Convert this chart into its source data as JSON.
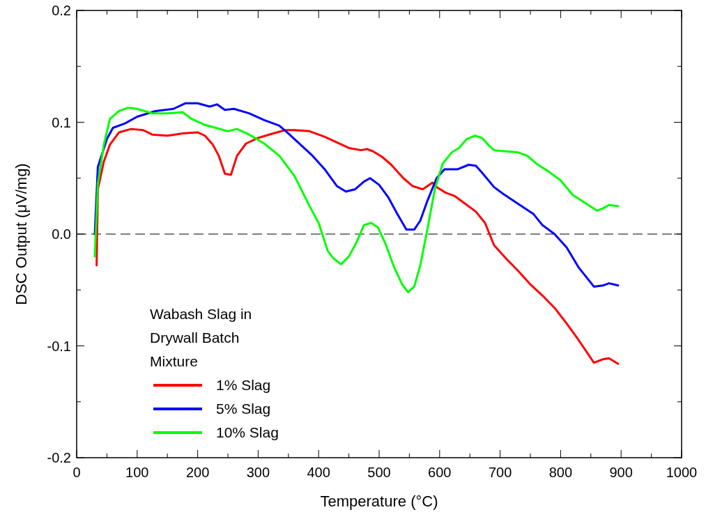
{
  "chart_data": {
    "type": "line",
    "xlabel": "Temperature (°C)",
    "ylabel": "DSC Output (μV/mg)",
    "legend_title": "Wabash Slag in Drywall Batch Mixture",
    "legend": "bottom left",
    "marker": "none",
    "line_style": "solid",
    "grid": false,
    "xlim": [
      0,
      1000
    ],
    "xticks": [
      0,
      {
        "value": 50,
        "label": null
      },
      100,
      {
        "value": 150,
        "label": null
      },
      200,
      {
        "value": 250,
        "label": null
      },
      300,
      {
        "value": 350,
        "label": null
      },
      400,
      {
        "value": 450,
        "label": null
      },
      500,
      {
        "value": 550,
        "label": null
      },
      600,
      {
        "value": 650,
        "label": null
      },
      700,
      {
        "value": 750,
        "label": null
      },
      800,
      {
        "value": 850,
        "label": null
      },
      900,
      {
        "value": 950,
        "label": null
      },
      1000
    ],
    "ylim": [
      -0.2,
      0.2
    ],
    "yticks": [
      -0.2,
      {
        "value": -0.15,
        "label": null
      },
      -0.1,
      {
        "value": -0.05,
        "label": null
      },
      {
        "value": 0,
        "label": "0.0"
      },
      {
        "value": 0.05,
        "label": null
      },
      0.1,
      {
        "value": 0.15,
        "label": null
      },
      0.2
    ],
    "ref_lines": [
      {
        "axis": "y",
        "value": 0,
        "color": "#000000",
        "line_style": "dashed"
      }
    ],
    "series": [
      {
        "name": "1% Slag",
        "color": "#ff0000",
        "x": [
          33,
          35,
          45,
          55,
          70,
          90,
          110,
          125,
          150,
          175,
          200,
          212,
          225,
          235,
          245,
          255,
          265,
          280,
          300,
          325,
          345,
          360,
          385,
          410,
          430,
          450,
          470,
          480,
          490,
          505,
          520,
          540,
          555,
          572,
          588,
          595,
          610,
          625,
          640,
          660,
          675,
          690,
          710,
          730,
          750,
          770,
          790,
          810,
          830,
          855,
          870,
          880,
          895
        ],
        "values": [
          -0.028,
          0.04,
          0.065,
          0.08,
          0.091,
          0.094,
          0.093,
          0.089,
          0.088,
          0.09,
          0.091,
          0.088,
          0.08,
          0.07,
          0.054,
          0.053,
          0.07,
          0.081,
          0.086,
          0.09,
          0.093,
          0.093,
          0.092,
          0.087,
          0.082,
          0.077,
          0.075,
          0.076,
          0.074,
          0.069,
          0.062,
          0.05,
          0.043,
          0.04,
          0.046,
          0.042,
          0.037,
          0.034,
          0.028,
          0.02,
          0.01,
          -0.01,
          -0.022,
          -0.033,
          -0.045,
          -0.055,
          -0.066,
          -0.08,
          -0.095,
          -0.115,
          -0.112,
          -0.111,
          -0.116
        ]
      },
      {
        "name": "5% Slag",
        "color": "#0000ff",
        "x": [
          30,
          35,
          50,
          60,
          80,
          100,
          130,
          160,
          180,
          200,
          220,
          232,
          245,
          260,
          285,
          310,
          335,
          350,
          370,
          390,
          410,
          430,
          445,
          460,
          475,
          485,
          500,
          515,
          530,
          545,
          558,
          568,
          580,
          595,
          608,
          630,
          648,
          660,
          670,
          690,
          705,
          730,
          755,
          770,
          790,
          810,
          830,
          855,
          870,
          880,
          895
        ],
        "values": [
          0.0,
          0.06,
          0.085,
          0.095,
          0.099,
          0.105,
          0.11,
          0.112,
          0.117,
          0.117,
          0.114,
          0.116,
          0.111,
          0.112,
          0.108,
          0.102,
          0.097,
          0.09,
          0.08,
          0.07,
          0.058,
          0.043,
          0.038,
          0.04,
          0.047,
          0.05,
          0.044,
          0.033,
          0.018,
          0.004,
          0.004,
          0.012,
          0.03,
          0.05,
          0.058,
          0.058,
          0.062,
          0.061,
          0.055,
          0.042,
          0.036,
          0.027,
          0.018,
          0.008,
          0.0,
          -0.012,
          -0.03,
          -0.047,
          -0.046,
          -0.044,
          -0.046
        ]
      },
      {
        "name": "10% Slag",
        "color": "#00ff00",
        "x": [
          30,
          35,
          45,
          55,
          70,
          85,
          100,
          125,
          150,
          175,
          190,
          210,
          230,
          250,
          265,
          285,
          310,
          335,
          360,
          385,
          400,
          415,
          425,
          437,
          450,
          462,
          475,
          487,
          498,
          510,
          525,
          538,
          548,
          558,
          568,
          580,
          592,
          605,
          620,
          632,
          645,
          658,
          670,
          680,
          690,
          710,
          730,
          745,
          760,
          780,
          800,
          820,
          840,
          860,
          870,
          880,
          895
        ],
        "values": [
          -0.02,
          0.045,
          0.08,
          0.103,
          0.11,
          0.113,
          0.112,
          0.108,
          0.108,
          0.109,
          0.103,
          0.098,
          0.095,
          0.092,
          0.094,
          0.089,
          0.081,
          0.07,
          0.052,
          0.025,
          0.01,
          -0.015,
          -0.022,
          -0.027,
          -0.02,
          -0.008,
          0.008,
          0.01,
          0.006,
          -0.008,
          -0.03,
          -0.045,
          -0.052,
          -0.047,
          -0.028,
          0.005,
          0.04,
          0.063,
          0.073,
          0.077,
          0.085,
          0.088,
          0.086,
          0.08,
          0.075,
          0.074,
          0.073,
          0.07,
          0.063,
          0.056,
          0.048,
          0.035,
          0.028,
          0.021,
          0.023,
          0.026,
          0.025
        ]
      }
    ]
  }
}
